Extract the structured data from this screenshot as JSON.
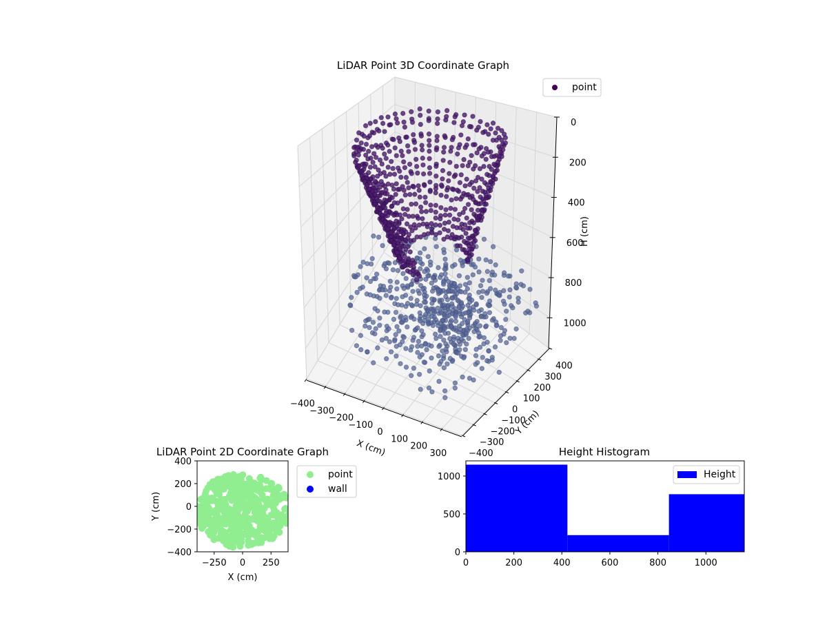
{
  "chart_data": [
    {
      "type": "scatter",
      "projection": "3d",
      "title": "LiDAR Point 3D Coordinate Graph",
      "xlabel": "X (cm)",
      "ylabel": "Y (cm)",
      "zlabel": "H (cm)",
      "xlim": [
        -400,
        400
      ],
      "ylim": [
        -400,
        400
      ],
      "zlim": [
        1150,
        0
      ],
      "z_inverted": true,
      "xticks": [
        "−400",
        "−300",
        "−200",
        "−100",
        "0",
        "100",
        "200",
        "300"
      ],
      "yticks": [
        "−400",
        "−300",
        "−200",
        "−100",
        "0",
        "100",
        "200",
        "300",
        "400"
      ],
      "zticks": [
        "0",
        "200",
        "400",
        "600",
        "800",
        "1000"
      ],
      "grid": true,
      "legend": {
        "entries": [
          "point"
        ],
        "placement": "top-right"
      },
      "series": [
        {
          "name": "point",
          "color": "#440154",
          "description": "ceiling dome points (~H 0–650) in dark purple, floor rays (~H 700–1100) in blue-gray",
          "upper_color": "#4a1a6e",
          "lower_color": "#5a6a9a"
        }
      ]
    },
    {
      "type": "scatter",
      "title": "LiDAR Point 2D Coordinate Graph",
      "xlabel": "X (cm)",
      "ylabel": "Y (cm)",
      "xlim": [
        -400,
        400
      ],
      "ylim": [
        -400,
        400
      ],
      "xticks": [
        "−250",
        "0",
        "250"
      ],
      "yticks": [
        "−400",
        "−200",
        "0",
        "200",
        "400"
      ],
      "grid": false,
      "legend": {
        "entries": [
          "point",
          "wall"
        ],
        "placement": "outside-right"
      },
      "series": [
        {
          "name": "point",
          "color": "#90ee90",
          "description": "dense disk of points filling roughly x∈[-400,400], y∈[-400,300]"
        },
        {
          "name": "wall",
          "color": "#0000ff",
          "values": []
        }
      ]
    },
    {
      "type": "bar",
      "subtype": "histogram",
      "title": "Height Histogram",
      "xlim": [
        0,
        1160
      ],
      "ylim": [
        0,
        1200
      ],
      "xticks": [
        "0",
        "200",
        "400",
        "600",
        "800",
        "1000"
      ],
      "yticks": [
        "0",
        "500",
        "1000"
      ],
      "legend": {
        "entries": [
          "Height"
        ],
        "placement": "top-right"
      },
      "series": [
        {
          "name": "Height",
          "color": "#0000ff",
          "bins": [
            {
              "x0": 0,
              "x1": 423,
              "count": 1150
            },
            {
              "x0": 423,
              "x1": 846,
              "count": 220
            },
            {
              "x0": 846,
              "x1": 1160,
              "count": 760
            }
          ]
        }
      ]
    }
  ]
}
